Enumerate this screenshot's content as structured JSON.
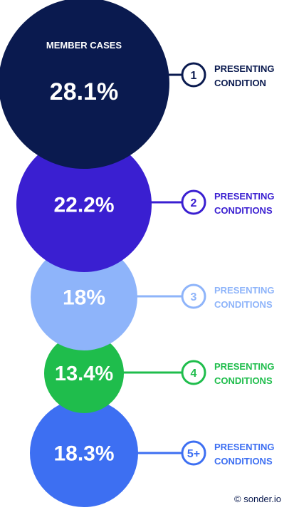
{
  "chart_data": {
    "type": "bubble",
    "value_label": "MEMBER CASES",
    "unit": "%",
    "items": [
      {
        "value": 28.1,
        "value_text": "28.1%",
        "number": "1",
        "label_line1": "PRESENTING",
        "label_line2": "CONDITION",
        "color": "#0a1a4f",
        "text_color": "#ffffff"
      },
      {
        "value": 22.2,
        "value_text": "22.2%",
        "number": "2",
        "label_line1": "PRESENTING",
        "label_line2": "CONDITIONS",
        "color": "#3a1fd1",
        "text_color": "#ffffff"
      },
      {
        "value": 18.0,
        "value_text": "18%",
        "number": "3",
        "label_line1": "PRESENTING",
        "label_line2": "CONDITIONS",
        "color": "#8eb4fa",
        "text_color": "#ffffff"
      },
      {
        "value": 13.4,
        "value_text": "13.4%",
        "number": "4",
        "label_line1": "PRESENTING",
        "label_line2": "CONDITIONS",
        "color": "#1fbd4c",
        "text_color": "#ffffff"
      },
      {
        "value": 18.3,
        "value_text": "18.3%",
        "number": "5+",
        "label_line1": "PRESENTING",
        "label_line2": "CONDITIONS",
        "color": "#3d6ff2",
        "text_color": "#ffffff"
      }
    ]
  },
  "footer": {
    "credit": "© sonder.io"
  }
}
